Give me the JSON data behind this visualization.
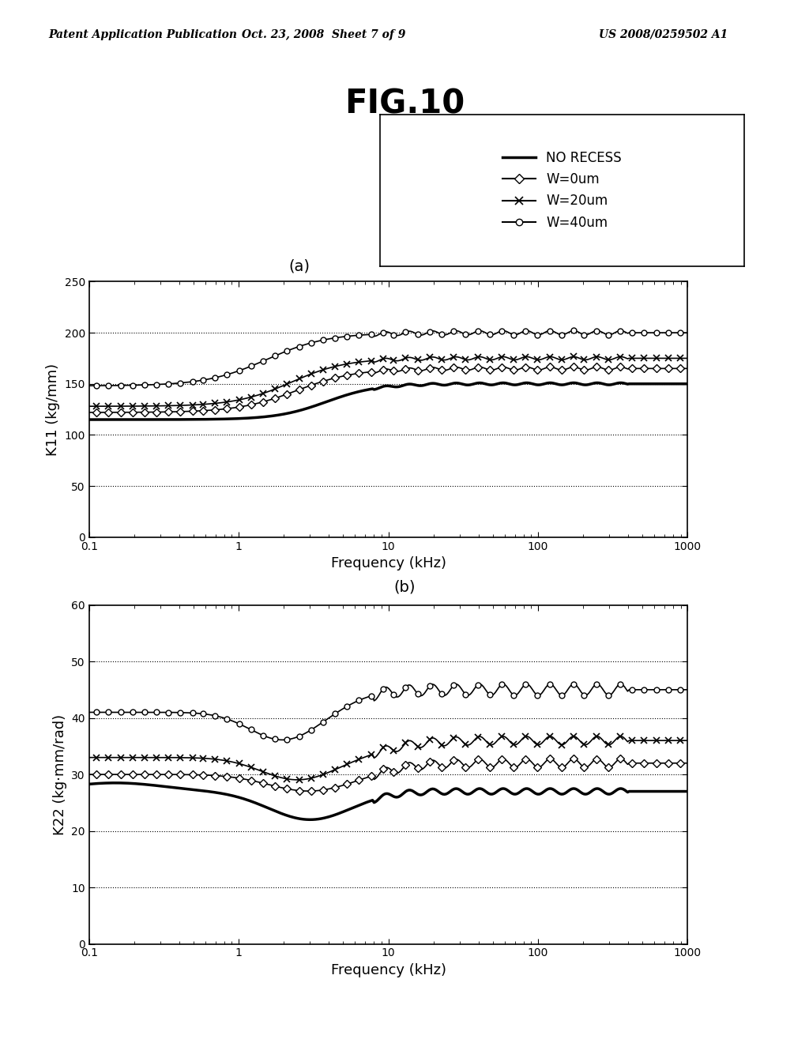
{
  "title": "FIG.10",
  "header_left": "Patent Application Publication",
  "header_center": "Oct. 23, 2008  Sheet 7 of 9",
  "header_right": "US 2008/0259502 A1",
  "legend_labels": [
    "NO RECESS",
    "W=0um",
    "W=20um",
    "W=40um"
  ],
  "label_a": "(a)",
  "label_b": "(b)",
  "plot1_ylabel": "K11 (kg/mm)",
  "plot1_xlabel": "Frequency (kHz)",
  "plot1_ylim": [
    0,
    250
  ],
  "plot1_yticks": [
    0,
    50,
    100,
    150,
    200,
    250
  ],
  "plot2_ylabel": "K22 (kg·mm/rad)",
  "plot2_xlabel": "Frequency (kHz)",
  "plot2_ylim": [
    0,
    60
  ],
  "plot2_yticks": [
    0,
    10,
    20,
    30,
    40,
    50,
    60
  ],
  "xlim_log": [
    0.1,
    1000
  ],
  "background_color": "#ffffff",
  "line_color": "#000000"
}
